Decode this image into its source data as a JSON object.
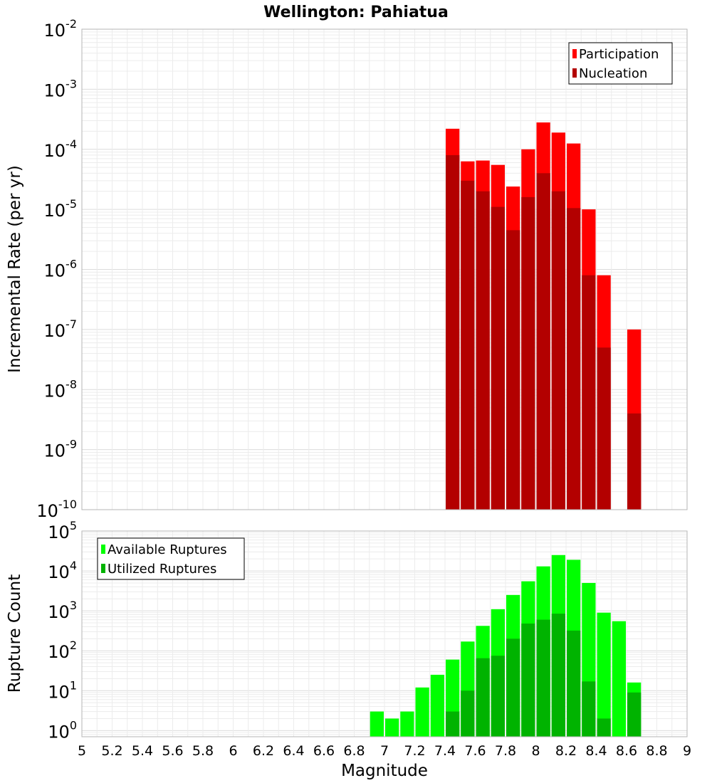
{
  "chart_data": {
    "title": "Wellington: Pahiatua",
    "xlabel": "Magnitude",
    "xlim": [
      5,
      9
    ],
    "xticks": [
      "5",
      "5.2",
      "5.4",
      "5.6",
      "5.8",
      "6",
      "6.2",
      "6.4",
      "6.6",
      "6.8",
      "7",
      "7.2",
      "7.4",
      "7.6",
      "7.8",
      "8",
      "8.2",
      "8.4",
      "8.6",
      "8.8",
      "9"
    ],
    "bin_width": 0.1,
    "panels": [
      {
        "type": "bar",
        "scale": "log",
        "ylabel": "Incremental Rate (per yr)",
        "ylim": [
          1e-10,
          0.01
        ],
        "yticks": [
          {
            "base": "10",
            "exp": "-10",
            "value": 1e-10
          },
          {
            "base": "10",
            "exp": "-9",
            "value": 1e-09
          },
          {
            "base": "10",
            "exp": "-8",
            "value": 1e-08
          },
          {
            "base": "10",
            "exp": "-7",
            "value": 1e-07
          },
          {
            "base": "10",
            "exp": "-6",
            "value": 1e-06
          },
          {
            "base": "10",
            "exp": "-5",
            "value": 1e-05
          },
          {
            "base": "10",
            "exp": "-4",
            "value": 0.0001
          },
          {
            "base": "10",
            "exp": "-3",
            "value": 0.001
          },
          {
            "base": "10",
            "exp": "-2",
            "value": 0.01
          }
        ],
        "legend_position": "top-right",
        "series": [
          {
            "name": "Participation",
            "color": "#ff0000",
            "x": [
              7.45,
              7.55,
              7.65,
              7.75,
              7.85,
              7.95,
              8.05,
              8.15,
              8.25,
              8.35,
              8.45,
              8.65
            ],
            "values": [
              0.00022,
              6.3e-05,
              6.5e-05,
              5.5e-05,
              2.4e-05,
              0.0001,
              0.00028,
              0.00019,
              0.000125,
              1e-05,
              8e-07,
              1e-07
            ]
          },
          {
            "name": "Nucleation",
            "color": "#b30000",
            "x": [
              7.45,
              7.55,
              7.65,
              7.75,
              7.85,
              7.95,
              8.05,
              8.15,
              8.25,
              8.35,
              8.45,
              8.65
            ],
            "values": [
              8e-05,
              3e-05,
              2e-05,
              1.1e-05,
              4.5e-06,
              1.6e-05,
              4e-05,
              2e-05,
              1.05e-05,
              8e-07,
              5e-08,
              4e-09
            ]
          }
        ]
      },
      {
        "type": "bar",
        "scale": "log",
        "ylabel": "Rupture Count",
        "ylim": [
          0.7,
          100000
        ],
        "yticks": [
          {
            "base": "10",
            "exp": "0",
            "value": 1
          },
          {
            "base": "10",
            "exp": "1",
            "value": 10
          },
          {
            "base": "10",
            "exp": "2",
            "value": 100
          },
          {
            "base": "10",
            "exp": "3",
            "value": 1000
          },
          {
            "base": "10",
            "exp": "4",
            "value": 10000
          },
          {
            "base": "10",
            "exp": "5",
            "value": 100000
          }
        ],
        "legend_position": "top-left",
        "series": [
          {
            "name": "Available Ruptures",
            "color": "#00ff00",
            "x": [
              6.95,
              7.05,
              7.15,
              7.25,
              7.35,
              7.45,
              7.55,
              7.65,
              7.75,
              7.85,
              7.95,
              8.05,
              8.15,
              8.25,
              8.35,
              8.45,
              8.55,
              8.65
            ],
            "values": [
              3,
              2,
              3,
              12,
              25,
              60,
              170,
              420,
              1100,
              2500,
              5500,
              13000,
              25000,
              19000,
              5000,
              900,
              550,
              16
            ]
          },
          {
            "name": "Utilized Ruptures",
            "color": "#00b300",
            "x": [
              7.45,
              7.55,
              7.65,
              7.75,
              7.85,
              7.95,
              8.05,
              8.15,
              8.25,
              8.35,
              8.45,
              8.65
            ],
            "values": [
              3,
              10,
              65,
              75,
              200,
              480,
              600,
              850,
              320,
              17,
              2,
              9
            ]
          }
        ]
      }
    ]
  }
}
